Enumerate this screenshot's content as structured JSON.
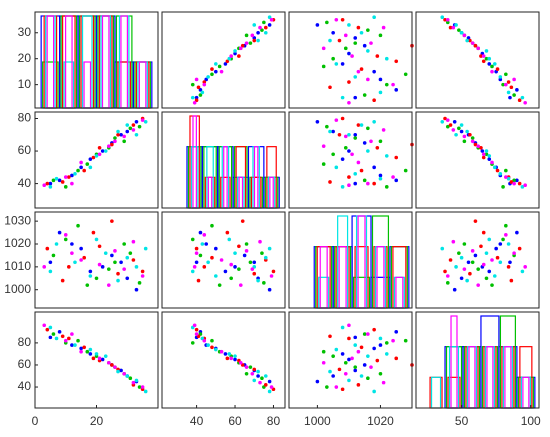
{
  "chart_data": {
    "type": "scatter-matrix",
    "variables": [
      {
        "xlim": [
          0,
          40
        ],
        "xticks": [
          0,
          20
        ],
        "ylim": [
          1,
          38
        ],
        "yticks": [
          10,
          20,
          30
        ]
      },
      {
        "xlim": [
          22,
          86
        ],
        "xticks": [
          40,
          60,
          80
        ],
        "ylim": [
          25,
          84
        ],
        "yticks": [
          40,
          60,
          80
        ]
      },
      {
        "xlim": [
          991,
          1030
        ],
        "xticks": [
          1000,
          1020
        ],
        "ylim": [
          992,
          1034
        ],
        "yticks": [
          1000,
          1010,
          1020,
          1030
        ]
      },
      {
        "xlim": [
          17,
          106
        ],
        "xticks": [
          50,
          100
        ],
        "ylim": [
          21,
          108
        ],
        "yticks": [
          40,
          60,
          80
        ]
      }
    ],
    "series": [
      {
        "color": "#0000ff",
        "values": [
          [
            5,
            40,
            1012,
            85
          ],
          [
            12,
            45,
            1020,
            78
          ],
          [
            18,
            55,
            1008,
            70
          ],
          [
            25,
            65,
            1015,
            60
          ],
          [
            30,
            72,
            1005,
            50
          ],
          [
            8,
            42,
            1025,
            90
          ],
          [
            22,
            60,
            1010,
            65
          ],
          [
            33,
            78,
            1000,
            45
          ],
          [
            15,
            50,
            1018,
            75
          ],
          [
            28,
            70,
            1012,
            55
          ]
        ]
      },
      {
        "color": "#00c000",
        "values": [
          [
            6,
            42,
            1015,
            88
          ],
          [
            10,
            38,
            1022,
            80
          ],
          [
            20,
            58,
            1005,
            68
          ],
          [
            26,
            68,
            1012,
            58
          ],
          [
            34,
            75,
            1003,
            40
          ],
          [
            14,
            48,
            1028,
            82
          ],
          [
            24,
            62,
            1009,
            62
          ],
          [
            31,
            74,
            1016,
            48
          ],
          [
            17,
            52,
            1002,
            72
          ],
          [
            29,
            66,
            1020,
            52
          ]
        ]
      },
      {
        "color": "#ff0000",
        "values": [
          [
            4,
            40,
            1018,
            92
          ],
          [
            11,
            44,
            1010,
            84
          ],
          [
            19,
            56,
            1025,
            66
          ],
          [
            27,
            70,
            1007,
            56
          ],
          [
            32,
            76,
            1013,
            42
          ],
          [
            9,
            41,
            1004,
            86
          ],
          [
            21,
            62,
            1019,
            64
          ],
          [
            35,
            80,
            1008,
            38
          ],
          [
            16,
            48,
            1014,
            76
          ],
          [
            25,
            64,
            1030,
            60
          ]
        ]
      },
      {
        "color": "#00e5e5",
        "values": [
          [
            7,
            43,
            1020,
            84
          ],
          [
            13,
            46,
            1012,
            78
          ],
          [
            23,
            60,
            1016,
            68
          ],
          [
            27,
            72,
            1004,
            54
          ],
          [
            33,
            70,
            1010,
            46
          ],
          [
            5,
            38,
            1008,
            94
          ],
          [
            20,
            57,
            1022,
            70
          ],
          [
            30,
            76,
            1014,
            50
          ],
          [
            18,
            50,
            1006,
            74
          ],
          [
            36,
            78,
            1018,
            36
          ]
        ]
      },
      {
        "color": "#ff00ff",
        "values": [
          [
            3,
            39,
            1010,
            96
          ],
          [
            10,
            44,
            1024,
            82
          ],
          [
            21,
            58,
            1011,
            66
          ],
          [
            26,
            66,
            1017,
            58
          ],
          [
            35,
            79,
            1006,
            40
          ],
          [
            12,
            40,
            1016,
            88
          ],
          [
            24,
            63,
            1002,
            62
          ],
          [
            32,
            73,
            1021,
            44
          ],
          [
            15,
            53,
            1013,
            72
          ],
          [
            29,
            69,
            1009,
            52
          ]
        ]
      }
    ],
    "hist": [
      {
        "bins": [
          2,
          8,
          14,
          20,
          26,
          32,
          38
        ],
        "counts": [
          [
            2,
            2,
            2,
            2,
            1,
            1
          ],
          [
            1,
            2,
            2,
            2,
            2,
            1
          ],
          [
            2,
            2,
            2,
            2,
            1,
            1
          ],
          [
            2,
            1,
            2,
            2,
            2,
            1
          ],
          [
            2,
            2,
            1,
            2,
            2,
            1
          ]
        ]
      },
      {
        "bins": [
          35,
          43,
          51,
          59,
          67,
          75,
          83
        ],
        "counts": [
          [
            2,
            2,
            2,
            1,
            2,
            1
          ],
          [
            2,
            2,
            2,
            2,
            1,
            1
          ],
          [
            3,
            1,
            1,
            2,
            1,
            2
          ],
          [
            2,
            2,
            2,
            1,
            2,
            1
          ],
          [
            3,
            1,
            2,
            1,
            2,
            1
          ]
        ]
      },
      {
        "bins": [
          993,
          999,
          1005,
          1011,
          1017,
          1023,
          1029
        ],
        "counts": [
          [
            0,
            2,
            2,
            3,
            1,
            2
          ],
          [
            0,
            2,
            2,
            1,
            3,
            2
          ],
          [
            0,
            2,
            2,
            2,
            2,
            2
          ],
          [
            0,
            1,
            3,
            3,
            2,
            1
          ],
          [
            0,
            2,
            2,
            3,
            2,
            1
          ]
        ]
      },
      {
        "bins": [
          25,
          38,
          51,
          64,
          77,
          90,
          103
        ],
        "counts": [
          [
            0,
            2,
            2,
            3,
            2,
            1
          ],
          [
            0,
            2,
            2,
            2,
            3,
            1
          ],
          [
            1,
            1,
            2,
            2,
            2,
            2
          ],
          [
            1,
            2,
            2,
            2,
            2,
            1
          ],
          [
            0,
            3,
            2,
            2,
            2,
            1
          ]
        ]
      }
    ]
  }
}
